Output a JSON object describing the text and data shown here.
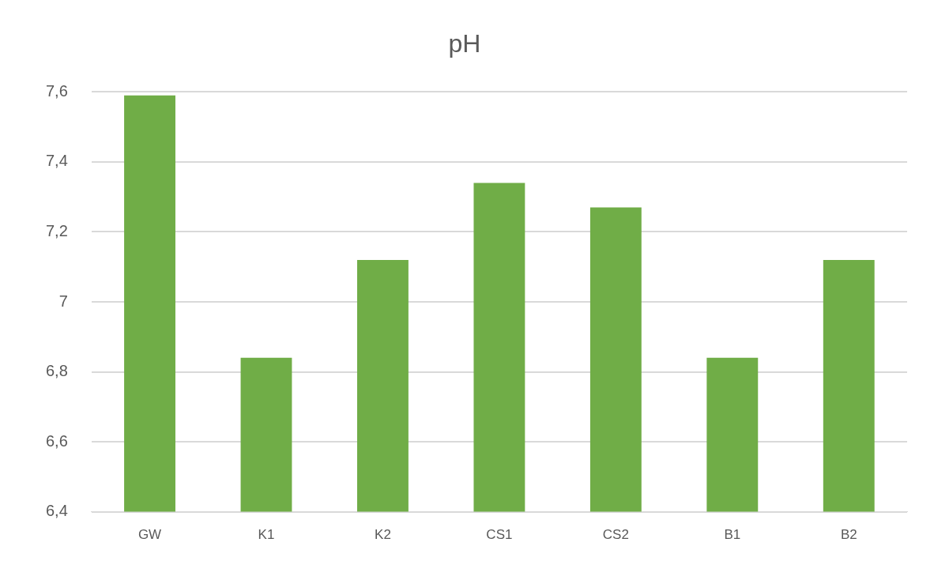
{
  "chart_data": {
    "type": "bar",
    "title": "pH",
    "categories": [
      "GW",
      "K1",
      "K2",
      "CS1",
      "CS2",
      "B1",
      "B2"
    ],
    "values": [
      7.59,
      6.84,
      7.12,
      7.34,
      7.27,
      6.84,
      7.12
    ],
    "color": "#70ad47",
    "ylim": [
      6.4,
      7.6
    ],
    "yticks": [
      {
        "value": 6.4,
        "label": "6,4"
      },
      {
        "value": 6.6,
        "label": "6,6"
      },
      {
        "value": 6.8,
        "label": "6,8"
      },
      {
        "value": 7,
        "label": "7"
      },
      {
        "value": 7.2,
        "label": "7,2"
      },
      {
        "value": 7.4,
        "label": "7,4"
      },
      {
        "value": 7.6,
        "label": "7,6"
      }
    ],
    "grid": "y",
    "legend": false
  }
}
